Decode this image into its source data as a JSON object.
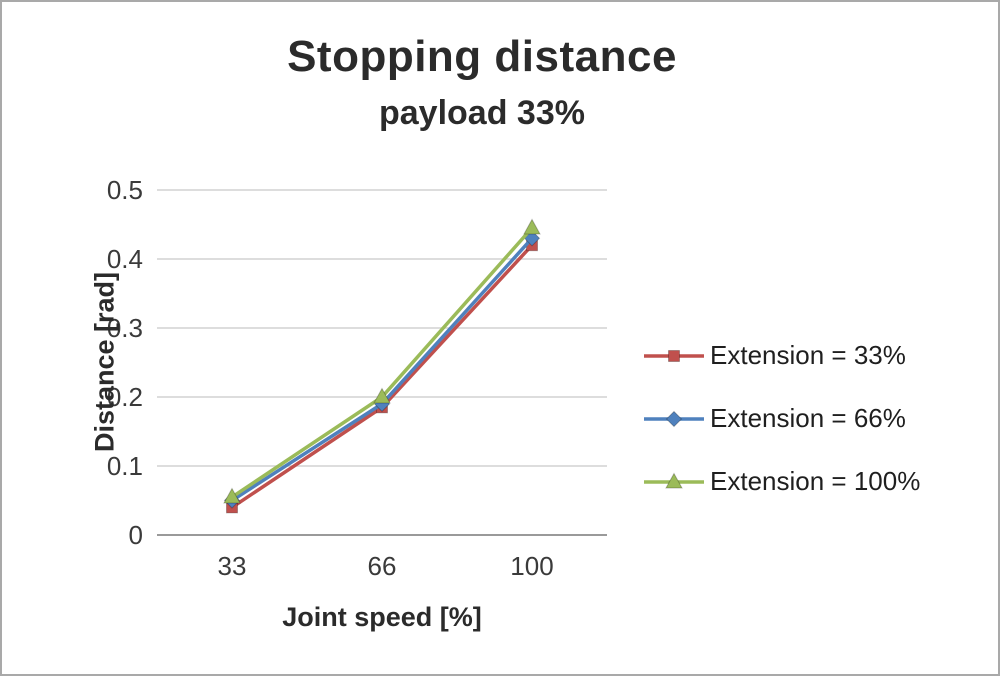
{
  "title": "Stopping distance",
  "subtitle": "payload 33%",
  "chart_data": {
    "type": "line",
    "title": "Stopping distance",
    "subtitle": "payload 33%",
    "xlabel": "Joint speed [%]",
    "ylabel": "Distance [rad]",
    "categories": [
      "33",
      "66",
      "100"
    ],
    "ylim": [
      0,
      0.5
    ],
    "yticks": [
      0,
      0.1,
      0.2,
      0.3,
      0.4,
      0.5
    ],
    "grid": true,
    "legend_position": "right",
    "series": [
      {
        "name": "Extension = 33%",
        "marker": "square",
        "color": "#c0504d",
        "values": [
          0.04,
          0.185,
          0.42
        ]
      },
      {
        "name": "Extension = 66%",
        "marker": "diamond",
        "color": "#4f81bd",
        "values": [
          0.05,
          0.19,
          0.43
        ]
      },
      {
        "name": "Extension = 100%",
        "marker": "triangle",
        "color": "#9bbb59",
        "values": [
          0.055,
          0.2,
          0.445
        ]
      }
    ]
  }
}
